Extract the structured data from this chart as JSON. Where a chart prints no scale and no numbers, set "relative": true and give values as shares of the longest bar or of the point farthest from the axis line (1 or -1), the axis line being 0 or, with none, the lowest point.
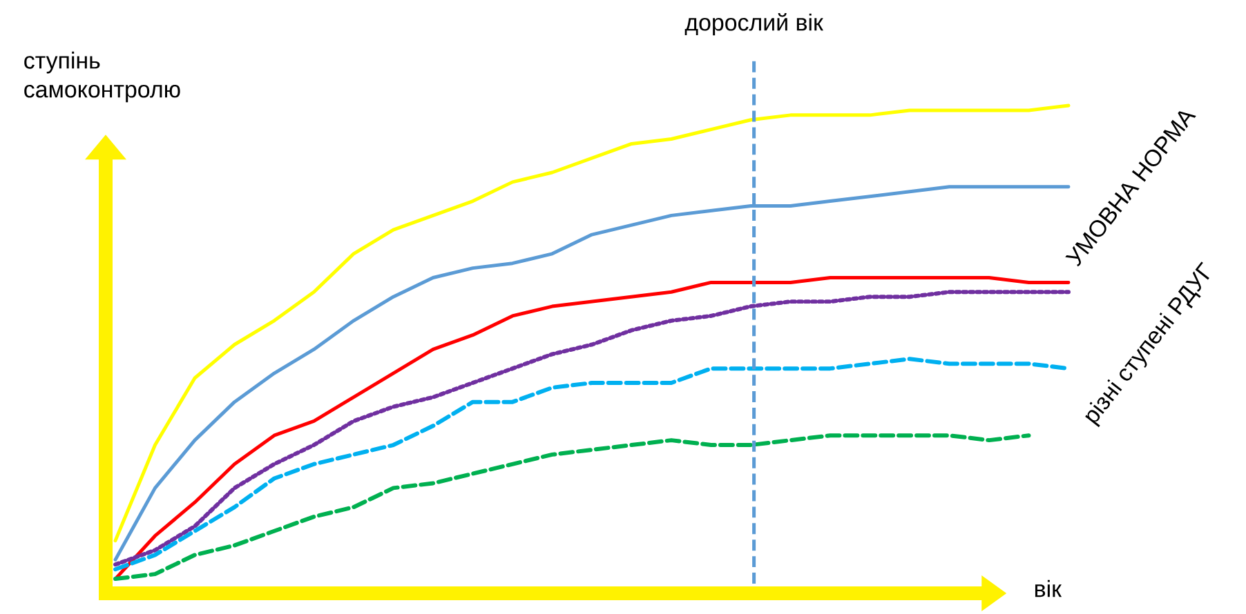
{
  "chart_data": {
    "type": "line",
    "relative": true,
    "xlabel": "вік",
    "ylabel": "ступінь самоконтролю",
    "categories": [
      null,
      null,
      null,
      null,
      null,
      null,
      null,
      null,
      null,
      null,
      null,
      null,
      null,
      null,
      null,
      null,
      null,
      null,
      null,
      null,
      null,
      null,
      null,
      null,
      null
    ],
    "series": [
      {
        "color": "#ffff00",
        "line_style": "solid",
        "values": [
          0.09,
          0.29,
          0.43,
          0.5,
          0.55,
          0.61,
          0.69,
          0.74,
          0.77,
          0.8,
          0.84,
          0.86,
          0.89,
          0.92,
          0.93,
          0.95,
          0.97,
          0.98,
          0.98,
          0.98,
          0.99,
          0.99,
          0.99,
          0.99,
          1.0
        ]
      },
      {
        "color": "#5b9bd5",
        "line_style": "solid",
        "values": [
          0.05,
          0.2,
          0.3,
          0.38,
          0.44,
          0.49,
          0.55,
          0.6,
          0.64,
          0.66,
          0.67,
          0.69,
          0.73,
          0.75,
          0.77,
          0.78,
          0.79,
          0.79,
          0.8,
          0.81,
          0.82,
          0.83,
          0.83,
          0.83,
          0.83
        ]
      },
      {
        "color": "#ff0000",
        "line_style": "solid",
        "values": [
          0.01,
          0.1,
          0.17,
          0.25,
          0.31,
          0.34,
          0.39,
          0.44,
          0.49,
          0.52,
          0.56,
          0.58,
          0.59,
          0.6,
          0.61,
          0.63,
          0.63,
          0.63,
          0.64,
          0.64,
          0.64,
          0.64,
          0.64,
          0.63,
          0.63
        ]
      },
      {
        "color": "#7030a0",
        "line_style": "dotted",
        "values": [
          0.04,
          0.07,
          0.12,
          0.2,
          0.25,
          0.29,
          0.34,
          0.37,
          0.39,
          0.42,
          0.45,
          0.48,
          0.5,
          0.53,
          0.55,
          0.56,
          0.58,
          0.59,
          0.59,
          0.6,
          0.6,
          0.61,
          0.61,
          0.61,
          0.61
        ]
      },
      {
        "color": "#00b0f0",
        "line_style": "dashed",
        "values": [
          0.03,
          0.06,
          0.11,
          0.16,
          0.22,
          0.25,
          0.27,
          0.29,
          0.33,
          0.38,
          0.38,
          0.41,
          0.42,
          0.42,
          0.42,
          0.45,
          0.45,
          0.45,
          0.45,
          0.46,
          0.47,
          0.46,
          0.46,
          0.46,
          0.45
        ]
      },
      {
        "color": "#00b050",
        "line_style": "dashed",
        "values": [
          0.01,
          0.02,
          0.06,
          0.08,
          0.11,
          0.14,
          0.16,
          0.2,
          0.21,
          0.23,
          0.25,
          0.27,
          0.28,
          0.29,
          0.3,
          0.29,
          0.29,
          0.3,
          0.31,
          0.31,
          0.31,
          0.31,
          0.3,
          0.31,
          null
        ]
      }
    ],
    "annotations": [
      "УМОВНА НОРМА",
      "різні ступені РДУГ",
      "дорослий вік"
    ]
  }
}
